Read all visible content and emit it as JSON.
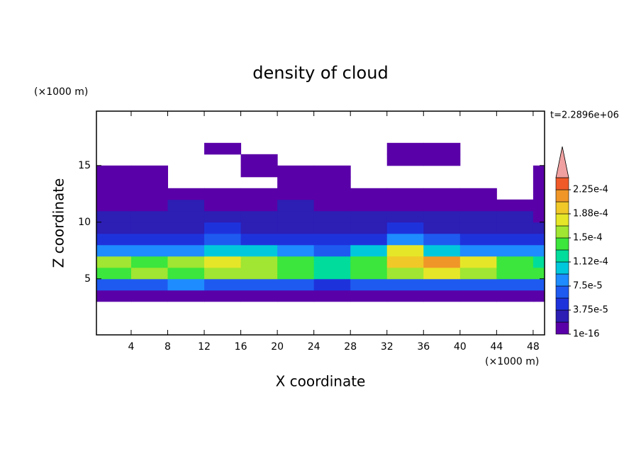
{
  "chart_data": {
    "type": "contour",
    "title": "density of cloud",
    "x_label": "X coordinate",
    "y_label": "Z coordinate",
    "x_unit": "(×1000 m)",
    "y_unit": "(×1000 m)",
    "time_label": "t=2.2896e+06",
    "xlim": [
      0.2,
      49.25
    ],
    "ylim": [
      0.05,
      19.8
    ],
    "xticks": [
      4,
      8,
      12,
      16,
      20,
      24,
      28,
      32,
      36,
      40,
      44,
      48
    ],
    "yticks": [
      5,
      10,
      15
    ],
    "x": [
      0,
      4,
      8,
      12,
      16,
      20,
      24,
      28,
      32,
      36,
      40,
      44,
      48
    ],
    "x_step": 4,
    "y": [
      3,
      4,
      5,
      6,
      7,
      8,
      9,
      10,
      11,
      12,
      13,
      14,
      15,
      16
    ],
    "y_step": 1,
    "z": [
      [
        9e-06,
        9e-06,
        9e-06,
        9e-06,
        9e-06,
        9e-06,
        9e-06,
        9e-06,
        9e-06,
        9e-06,
        9e-06,
        9e-06,
        9e-06
      ],
      [
        6.6e-05,
        6.6e-05,
        8.4e-05,
        6.6e-05,
        6.6e-05,
        6.6e-05,
        4.7e-05,
        6.6e-05,
        6.6e-05,
        6.6e-05,
        6.6e-05,
        6.6e-05,
        6.6e-05
      ],
      [
        0.00014,
        0.000159,
        0.00014,
        0.000159,
        0.000159,
        0.00014,
        0.000122,
        0.00014,
        0.000159,
        0.000178,
        0.000159,
        0.00014,
        0.00014
      ],
      [
        0.000159,
        0.00014,
        0.000159,
        0.000178,
        0.000159,
        0.00014,
        0.000122,
        0.00014,
        0.000197,
        0.000215,
        0.000178,
        0.00014,
        0.000122
      ],
      [
        8.4e-05,
        8.4e-05,
        8.4e-05,
        0.000103,
        0.000103,
        8.4e-05,
        6.6e-05,
        0.000103,
        0.000178,
        0.000103,
        8.4e-05,
        8.4e-05,
        8.4e-05
      ],
      [
        4.7e-05,
        4.7e-05,
        4.7e-05,
        6.6e-05,
        4.7e-05,
        4.7e-05,
        4.7e-05,
        4.7e-05,
        8.4e-05,
        6.6e-05,
        4.7e-05,
        4.7e-05,
        4.7e-05
      ],
      [
        2.8e-05,
        2.8e-05,
        2.8e-05,
        4.7e-05,
        2.8e-05,
        2.8e-05,
        2.8e-05,
        2.8e-05,
        4.7e-05,
        2.8e-05,
        2.8e-05,
        2.8e-05,
        2.8e-05
      ],
      [
        2.8e-05,
        2.8e-05,
        2.8e-05,
        2.8e-05,
        2.8e-05,
        2.8e-05,
        2.8e-05,
        2.8e-05,
        2.8e-05,
        2.8e-05,
        2.8e-05,
        2.8e-05,
        9e-06
      ],
      [
        9e-06,
        9e-06,
        2.8e-05,
        9e-06,
        9e-06,
        2.8e-05,
        9e-06,
        9e-06,
        9e-06,
        9e-06,
        9e-06,
        9e-06,
        9e-06
      ],
      [
        9e-06,
        9e-06,
        9e-06,
        9e-06,
        9e-06,
        9e-06,
        9e-06,
        9e-06,
        9e-06,
        9e-06,
        9e-06,
        null,
        9e-06
      ],
      [
        9e-06,
        9e-06,
        null,
        null,
        null,
        9e-06,
        9e-06,
        null,
        null,
        null,
        null,
        null,
        9e-06
      ],
      [
        9e-06,
        9e-06,
        null,
        null,
        9e-06,
        9e-06,
        9e-06,
        null,
        null,
        null,
        null,
        null,
        9e-06
      ],
      [
        null,
        null,
        null,
        null,
        9e-06,
        null,
        null,
        null,
        9e-06,
        9e-06,
        null,
        null,
        null
      ],
      [
        null,
        null,
        null,
        9e-06,
        null,
        null,
        null,
        null,
        9e-06,
        9e-06,
        null,
        null,
        null
      ]
    ],
    "levels": [
      1e-16,
      1.875e-05,
      3.75e-05,
      5.625e-05,
      7.5e-05,
      9.375e-05,
      0.0001125,
      0.00013125,
      0.00015,
      0.00016875,
      0.0001875,
      0.00020625,
      0.000225,
      0.00024375
    ],
    "colors": [
      "#5a00a8",
      "#2d1eb4",
      "#1e32dc",
      "#1e5af0",
      "#1e8cff",
      "#00c8dc",
      "#00dc9b",
      "#3ce63c",
      "#a0e632",
      "#e6e628",
      "#f0c828",
      "#f09628",
      "#f05a28",
      "#f0a0a0"
    ],
    "colorbar_ticks": [
      {
        "value": 1e-16,
        "label": "1e-16"
      },
      {
        "value": 3.75e-05,
        "label": "3.75e-5"
      },
      {
        "value": 7.5e-05,
        "label": "7.5e-5"
      },
      {
        "value": 0.0001125,
        "label": "1.12e-4"
      },
      {
        "value": 0.00015,
        "label": "1.5e-4"
      },
      {
        "value": 0.0001875,
        "label": "1.88e-4"
      },
      {
        "value": 0.000225,
        "label": "2.25e-4"
      }
    ]
  }
}
